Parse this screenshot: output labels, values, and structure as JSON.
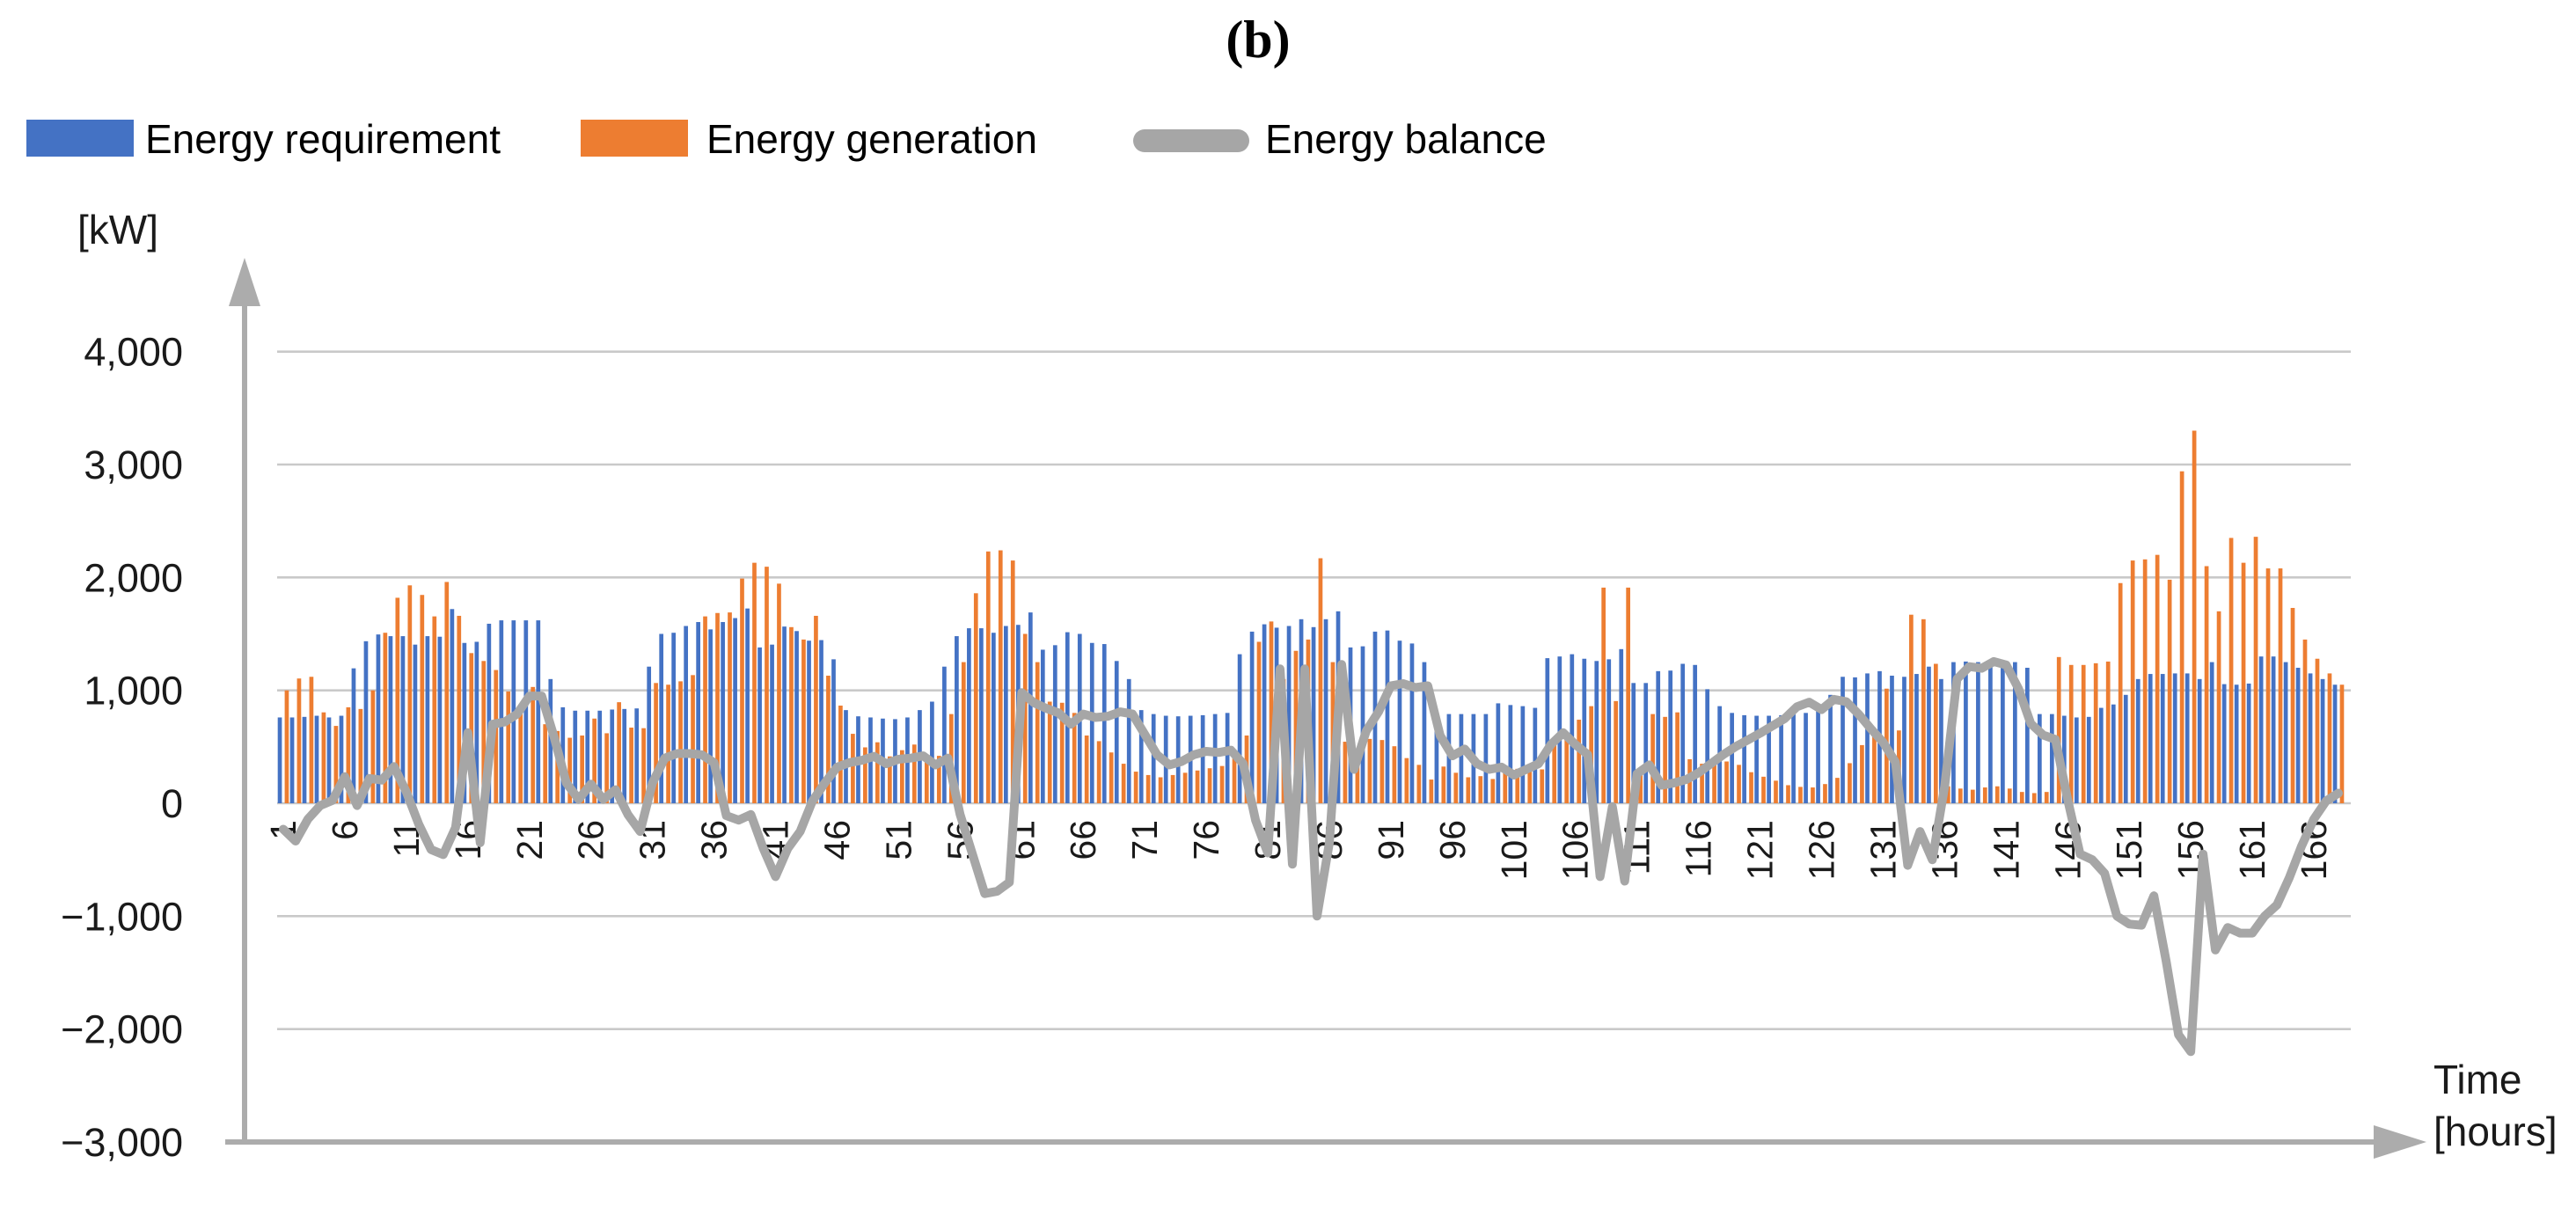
{
  "figure": {
    "panel_label": "(b)",
    "y_unit_label": "[kW]",
    "x_unit_line1": "Time",
    "x_unit_line2": "[hours]"
  },
  "chart_data": {
    "type": "combo-bar-line",
    "title": "(b)",
    "xlabel": "Time [hours]",
    "ylabel": "[kW]",
    "x_range": [
      1,
      168
    ],
    "ylim": [
      -3000,
      4000
    ],
    "grid": true,
    "legend_position": "top-left",
    "colors": {
      "requirement": "#4472C4",
      "generation": "#ED7D31",
      "balance": "#A6A6A6",
      "gridline": "#C9C9C9",
      "axis": "#ACACAC",
      "tick_text": "#1a1a1a"
    },
    "y_ticks": [
      {
        "value": 4000,
        "label": "4,000"
      },
      {
        "value": 3000,
        "label": "3,000"
      },
      {
        "value": 2000,
        "label": "2,000"
      },
      {
        "value": 1000,
        "label": "1,000"
      },
      {
        "value": 0,
        "label": "0"
      },
      {
        "value": -1000,
        "label": "−1,000"
      },
      {
        "value": -2000,
        "label": "−2,000"
      },
      {
        "value": -3000,
        "label": "−3,000"
      }
    ],
    "x_tick_labels": [
      1,
      6,
      11,
      16,
      21,
      26,
      31,
      36,
      41,
      46,
      51,
      56,
      61,
      66,
      71,
      76,
      81,
      86,
      91,
      96,
      101,
      106,
      111,
      116,
      121,
      126,
      131,
      136,
      141,
      146,
      151,
      156,
      161,
      166
    ],
    "series": [
      {
        "name": "Energy requirement",
        "type": "bar",
        "color": "#4472C4",
        "values": [
          760,
          760,
          765,
          775,
          760,
          775,
          1195,
          1435,
          1495,
          1480,
          1480,
          1405,
          1480,
          1475,
          1720,
          1420,
          1430,
          1590,
          1620,
          1620,
          1620,
          1620,
          1100,
          850,
          820,
          820,
          820,
          830,
          835,
          840,
          1210,
          1500,
          1510,
          1570,
          1605,
          1540,
          1605,
          1640,
          1725,
          1380,
          1405,
          1565,
          1525,
          1440,
          1445,
          1275,
          825,
          770,
          760,
          750,
          745,
          760,
          825,
          900,
          1210,
          1480,
          1550,
          1550,
          1510,
          1570,
          1580,
          1690,
          1360,
          1400,
          1515,
          1500,
          1420,
          1410,
          1260,
          1100,
          825,
          790,
          775,
          770,
          775,
          780,
          790,
          800,
          1320,
          1520,
          1585,
          1555,
          1570,
          1630,
          1560,
          1630,
          1700,
          1380,
          1390,
          1520,
          1530,
          1440,
          1415,
          1250,
          790,
          790,
          790,
          790,
          790,
          885,
          870,
          860,
          845,
          1285,
          1300,
          1320,
          1280,
          1260,
          1275,
          1365,
          1065,
          1065,
          1170,
          1175,
          1235,
          1225,
          1010,
          860,
          800,
          780,
          775,
          775,
          780,
          790,
          800,
          840,
          960,
          1120,
          1115,
          1150,
          1170,
          1130,
          1120,
          1145,
          1210,
          1100,
          1250,
          1255,
          1250,
          1250,
          1245,
          1250,
          1200,
          790,
          790,
          775,
          760,
          765,
          845,
          875,
          960,
          1100,
          1145,
          1145,
          1150,
          1150,
          1100,
          1250,
          1055,
          1050,
          1060,
          1300,
          1300,
          1250,
          1200,
          1150,
          1100,
          1050
        ]
      },
      {
        "name": "Energy generation",
        "type": "bar",
        "color": "#ED7D31",
        "values": [
          1000,
          1105,
          1120,
          805,
          685,
          850,
          835,
          1000,
          1510,
          1820,
          1930,
          1845,
          1655,
          1960,
          1660,
          1330,
          1260,
          1180,
          990,
          860,
          1030,
          700,
          640,
          580,
          600,
          750,
          620,
          895,
          670,
          665,
          1065,
          1050,
          1080,
          1135,
          1655,
          1685,
          1690,
          1990,
          2130,
          2095,
          1945,
          1560,
          1450,
          1660,
          1130,
          865,
          615,
          495,
          540,
          415,
          470,
          520,
          400,
          420,
          790,
          1250,
          1860,
          2230,
          2240,
          2150,
          1500,
          1250,
          900,
          890,
          800,
          600,
          550,
          450,
          350,
          280,
          250,
          230,
          250,
          270,
          290,
          310,
          330,
          420,
          600,
          1430,
          1610,
          1100,
          1350,
          1450,
          2170,
          1250,
          545,
          440,
          570,
          560,
          505,
          400,
          340,
          210,
          325,
          270,
          230,
          240,
          215,
          300,
          305,
          310,
          300,
          560,
          590,
          740,
          860,
          1910,
          905,
          1910,
          310,
          790,
          765,
          805,
          390,
          350,
          350,
          370,
          340,
          275,
          235,
          200,
          160,
          145,
          140,
          170,
          225,
          355,
          515,
          640,
          1015,
          645,
          1670,
          1630,
          1235,
          150,
          130,
          120,
          140,
          150,
          130,
          100,
          90,
          100,
          1295,
          1225,
          1225,
          1240,
          1255,
          1950,
          2150,
          2160,
          2200,
          1980,
          2940,
          3300,
          2100,
          1700,
          2350,
          2130,
          2360,
          2080,
          2080,
          1730,
          1450,
          1280,
          1150,
          1050
        ]
      },
      {
        "name": "Energy balance",
        "type": "line",
        "color": "#A6A6A6",
        "values": [
          -230,
          -335,
          -140,
          -20,
          25,
          235,
          -20,
          220,
          205,
          325,
          100,
          -185,
          -410,
          -455,
          -215,
          625,
          -350,
          700,
          720,
          790,
          950,
          950,
          590,
          180,
          35,
          170,
          35,
          120,
          -100,
          -250,
          180,
          400,
          440,
          440,
          430,
          360,
          -110,
          -150,
          -100,
          -400,
          -650,
          -400,
          -250,
          20,
          180,
          320,
          360,
          380,
          415,
          350,
          390,
          400,
          420,
          340,
          400,
          -100,
          -450,
          -800,
          -780,
          -700,
          980,
          890,
          840,
          800,
          700,
          790,
          760,
          770,
          810,
          790,
          610,
          430,
          340,
          370,
          430,
          460,
          450,
          470,
          350,
          -150,
          -440,
          1190,
          -540,
          1190,
          -1000,
          -350,
          1230,
          300,
          640,
          810,
          1040,
          1060,
          1025,
          1040,
          600,
          420,
          480,
          350,
          300,
          320,
          250,
          300,
          350,
          520,
          625,
          520,
          430,
          -650,
          -30,
          -690,
          260,
          340,
          160,
          180,
          210,
          270,
          350,
          430,
          500,
          560,
          620,
          685,
          750,
          855,
          895,
          830,
          920,
          900,
          790,
          660,
          540,
          365,
          -550,
          -250,
          -500,
          150,
          1100,
          1210,
          1195,
          1255,
          1225,
          1015,
          705,
          605,
          565,
          30,
          -450,
          -500,
          -620,
          -1000,
          -1070,
          -1080,
          -820,
          -1400,
          -2050,
          -2200,
          -450,
          -1300,
          -1100,
          -1150,
          -1150,
          -1000,
          -900,
          -660,
          -380,
          -140,
          20,
          90
        ]
      }
    ]
  }
}
